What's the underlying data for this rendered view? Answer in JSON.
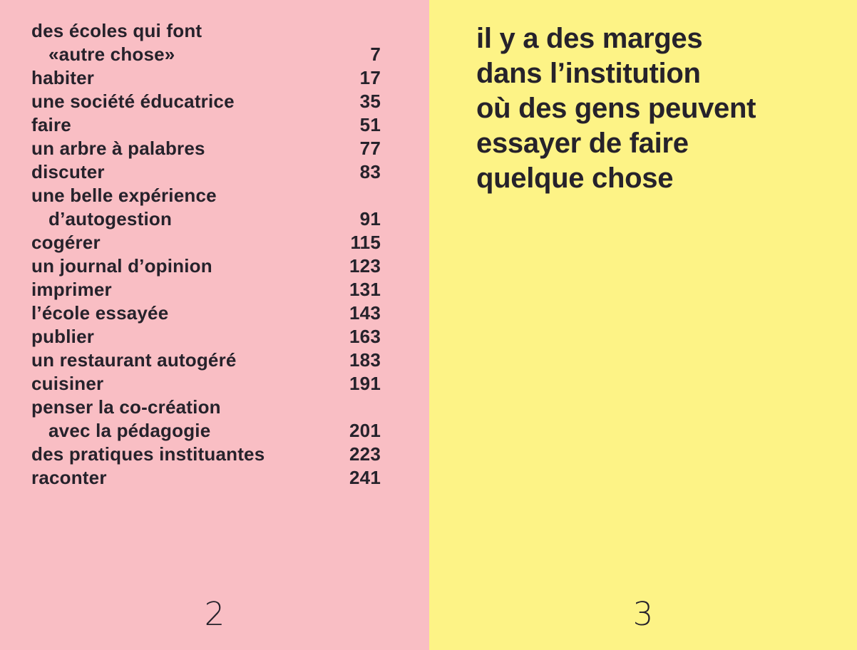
{
  "colors": {
    "left_page_bg": "#f9bec4",
    "right_page_bg": "#fdf386",
    "text_ink": "#26222b"
  },
  "left_page": {
    "folio": "2",
    "toc_entries": [
      {
        "title": "des écoles qui font",
        "indent": false,
        "page": ""
      },
      {
        "title": "«autre chose»",
        "indent": true,
        "page": "7"
      },
      {
        "title": "habiter",
        "indent": false,
        "page": "17"
      },
      {
        "title": "une société éducatrice",
        "indent": false,
        "page": "35"
      },
      {
        "title": "faire",
        "indent": false,
        "page": "51"
      },
      {
        "title": "un arbre à palabres",
        "indent": false,
        "page": "77"
      },
      {
        "title": "discuter",
        "indent": false,
        "page": "83"
      },
      {
        "title": "une belle expérience",
        "indent": false,
        "page": ""
      },
      {
        "title": "d’autogestion",
        "indent": true,
        "page": "91"
      },
      {
        "title": "cogérer",
        "indent": false,
        "page": "115"
      },
      {
        "title": "un journal d’opinion",
        "indent": false,
        "page": "123"
      },
      {
        "title": "imprimer",
        "indent": false,
        "page": "131"
      },
      {
        "title": "l’école essayée",
        "indent": false,
        "page": "143"
      },
      {
        "title": "publier",
        "indent": false,
        "page": "163"
      },
      {
        "title": "un restaurant autogéré",
        "indent": false,
        "page": "183"
      },
      {
        "title": "cuisiner",
        "indent": false,
        "page": "191"
      },
      {
        "title": "penser la co-création",
        "indent": false,
        "page": ""
      },
      {
        "title": "avec la pédagogie",
        "indent": true,
        "page": "201"
      },
      {
        "title": "des pratiques instituantes",
        "indent": false,
        "page": "223"
      },
      {
        "title": "raconter",
        "indent": false,
        "page": "241"
      }
    ]
  },
  "right_page": {
    "folio": "3",
    "quote_lines": [
      "il y a des marges",
      "dans l’institution",
      "où des gens peuvent",
      "essayer de faire",
      "quelque chose"
    ]
  }
}
